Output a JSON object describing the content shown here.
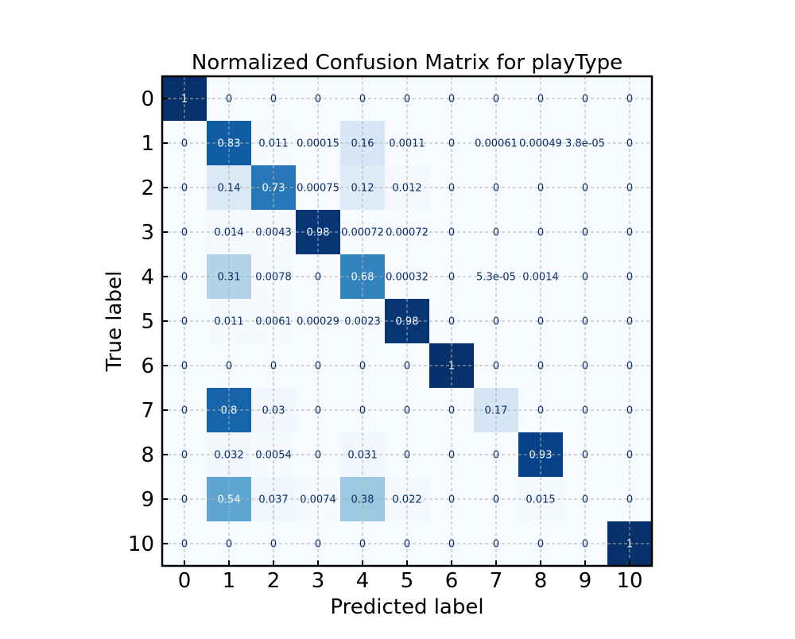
{
  "chart_data": {
    "type": "heatmap",
    "title": "Normalized Confusion Matrix for playType",
    "xlabel": "Predicted label",
    "ylabel": "True label",
    "x_tick_labels": [
      "0",
      "1",
      "2",
      "3",
      "4",
      "5",
      "6",
      "7",
      "8",
      "9",
      "10"
    ],
    "y_tick_labels": [
      "0",
      "1",
      "2",
      "3",
      "4",
      "5",
      "6",
      "7",
      "8",
      "9",
      "10"
    ],
    "colormap": "Blues",
    "value_range": [
      0,
      1
    ],
    "grid": true,
    "values": [
      [
        1,
        0,
        0,
        0,
        0,
        0,
        0,
        0,
        0,
        0,
        0
      ],
      [
        0,
        0.83,
        0.011,
        0.00015,
        0.16,
        0.0011,
        0,
        0.00061,
        0.00049,
        3.8e-05,
        0
      ],
      [
        0,
        0.14,
        0.73,
        0.00075,
        0.12,
        0.012,
        0,
        0,
        0,
        0,
        0
      ],
      [
        0,
        0.014,
        0.0043,
        0.98,
        0.00072,
        0.00072,
        0,
        0,
        0,
        0,
        0
      ],
      [
        0,
        0.31,
        0.0078,
        0,
        0.68,
        0.00032,
        0,
        5.3e-05,
        0.0014,
        0,
        0
      ],
      [
        0,
        0.011,
        0.0061,
        0.00029,
        0.0023,
        0.98,
        0,
        0,
        0,
        0,
        0
      ],
      [
        0,
        0,
        0,
        0,
        0,
        0,
        1,
        0,
        0,
        0,
        0
      ],
      [
        0,
        0.8,
        0.03,
        0,
        0,
        0,
        0,
        0.17,
        0,
        0,
        0
      ],
      [
        0,
        0.032,
        0.0054,
        0,
        0.031,
        0,
        0,
        0,
        0.93,
        0,
        0
      ],
      [
        0,
        0.54,
        0.037,
        0.0074,
        0.38,
        0.022,
        0,
        0,
        0.015,
        0,
        0
      ],
      [
        0,
        0,
        0,
        0,
        0,
        0,
        0,
        0,
        0,
        0,
        1
      ]
    ],
    "cell_labels": [
      [
        "1",
        "0",
        "0",
        "0",
        "0",
        "0",
        "0",
        "0",
        "0",
        "0",
        "0"
      ],
      [
        "0",
        "0.83",
        "0.011",
        "0.00015",
        "0.16",
        "0.0011",
        "0",
        "0.00061",
        "0.00049",
        "3.8e-05",
        "0"
      ],
      [
        "0",
        "0.14",
        "0.73",
        "0.00075",
        "0.12",
        "0.012",
        "0",
        "0",
        "0",
        "0",
        "0"
      ],
      [
        "0",
        "0.014",
        "0.0043",
        "0.98",
        "0.00072",
        "0.00072",
        "0",
        "0",
        "0",
        "0",
        "0"
      ],
      [
        "0",
        "0.31",
        "0.0078",
        "0",
        "0.68",
        "0.00032",
        "0",
        "5.3e-05",
        "0.0014",
        "0",
        "0"
      ],
      [
        "0",
        "0.011",
        "0.0061",
        "0.00029",
        "0.0023",
        "0.98",
        "0",
        "0",
        "0",
        "0",
        "0"
      ],
      [
        "0",
        "0",
        "0",
        "0",
        "0",
        "0",
        "1",
        "0",
        "0",
        "0",
        "0"
      ],
      [
        "0",
        "0.8",
        "0.03",
        "0",
        "0",
        "0",
        "0",
        "0.17",
        "0",
        "0",
        "0"
      ],
      [
        "0",
        "0.032",
        "0.0054",
        "0",
        "0.031",
        "0",
        "0",
        "0",
        "0.93",
        "0",
        "0"
      ],
      [
        "0",
        "0.54",
        "0.037",
        "0.0074",
        "0.38",
        "0.022",
        "0",
        "0",
        "0.015",
        "0",
        "0"
      ],
      [
        "0",
        "0",
        "0",
        "0",
        "0",
        "0",
        "0",
        "0",
        "0",
        "0",
        "1"
      ]
    ]
  }
}
